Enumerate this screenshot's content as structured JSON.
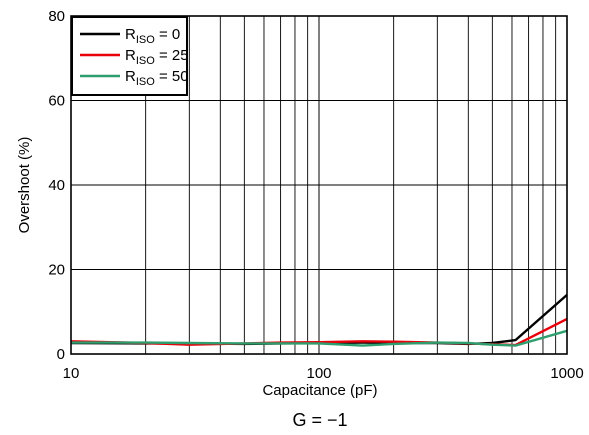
{
  "chart_data": {
    "type": "line",
    "xlabel": "Capacitance (pF)",
    "ylabel": "Overshoot (%)",
    "caption": "G = −1",
    "x_scale": "log",
    "xlim": [
      10,
      1000
    ],
    "ylim": [
      0,
      80
    ],
    "x_ticks": [
      10,
      100,
      1000
    ],
    "x_tick_labels": [
      "10",
      "100",
      "1000"
    ],
    "y_ticks": [
      0,
      20,
      40,
      60,
      80
    ],
    "y_tick_labels": [
      "0",
      "20",
      "40",
      "60",
      "80"
    ],
    "grid": true,
    "legend_position": "top-left",
    "series": [
      {
        "name": "R",
        "subscript": "ISO",
        "value_text": " = 0",
        "color": "#000000",
        "x": [
          10,
          20,
          30,
          50,
          70,
          100,
          150,
          200,
          300,
          400,
          500,
          620,
          1000
        ],
        "y": [
          2.6,
          2.5,
          2.5,
          2.4,
          2.5,
          2.6,
          2.7,
          2.6,
          2.6,
          2.4,
          2.6,
          3.3,
          14.0
        ]
      },
      {
        "name": "R",
        "subscript": "ISO",
        "value_text": " = 25",
        "color": "#e8000b",
        "x": [
          10,
          20,
          30,
          50,
          70,
          100,
          150,
          200,
          300,
          400,
          500,
          620,
          1000
        ],
        "y": [
          3.0,
          2.6,
          2.2,
          2.5,
          2.7,
          2.8,
          3.0,
          2.9,
          2.7,
          2.5,
          2.3,
          2.1,
          8.3
        ]
      },
      {
        "name": "R",
        "subscript": "ISO",
        "value_text": " = 50",
        "color": "#2e9e6e",
        "x": [
          10,
          20,
          30,
          50,
          70,
          100,
          150,
          200,
          300,
          400,
          500,
          620,
          1000
        ],
        "y": [
          2.7,
          2.7,
          2.6,
          2.5,
          2.5,
          2.5,
          2.0,
          2.4,
          2.7,
          2.6,
          2.2,
          2.0,
          5.5
        ]
      }
    ]
  }
}
